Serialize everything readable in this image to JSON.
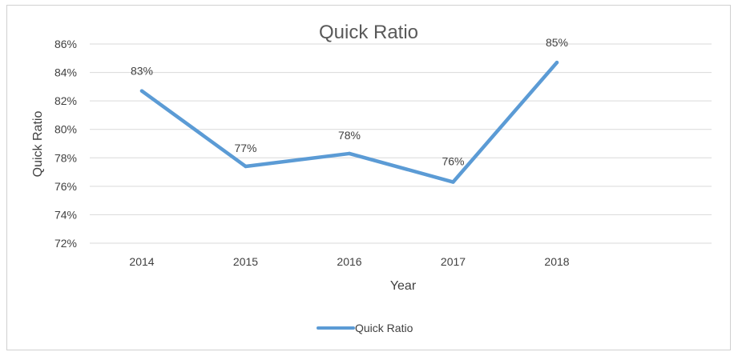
{
  "chart_data": {
    "type": "line",
    "title": "Quick Ratio",
    "xlabel": "Year",
    "ylabel": "Quick Ratio",
    "categories": [
      "2014",
      "2015",
      "2016",
      "2017",
      "2018"
    ],
    "series": [
      {
        "name": "Quick Ratio",
        "values": [
          82.7,
          77.4,
          78.3,
          76.3,
          84.7
        ],
        "labels": [
          "83%",
          "77%",
          "78%",
          "76%",
          "85%"
        ],
        "color": "#5b9bd5"
      }
    ],
    "ylim": [
      72,
      86
    ],
    "yticks": [
      72,
      74,
      76,
      78,
      80,
      82,
      84,
      86
    ],
    "ytick_labels": [
      "72%",
      "74%",
      "76%",
      "78%",
      "80%",
      "82%",
      "84%",
      "86%"
    ],
    "grid": true,
    "gridline_color": "#d9d9d9",
    "legend_position": "bottom"
  }
}
